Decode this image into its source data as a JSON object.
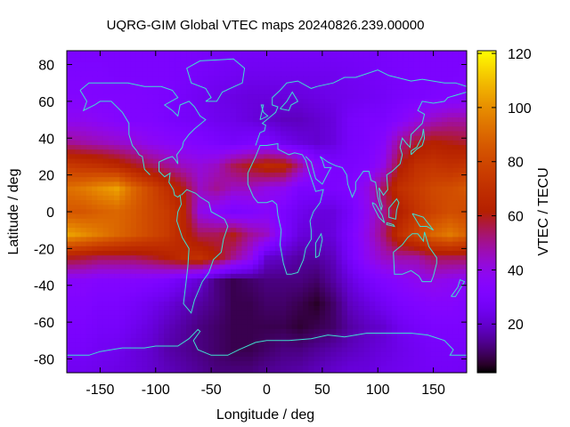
{
  "chart_data": {
    "type": "heatmap",
    "title": "UQRG-GIM Global VTEC maps 20240826.239.00000",
    "xlabel": "Longitude / deg",
    "ylabel": "Latitude / deg",
    "cblabel": "VTEC / TECU",
    "xlim": [
      -180,
      180
    ],
    "ylim": [
      -87.5,
      87.5
    ],
    "cblim": [
      2,
      121
    ],
    "xticks": [
      -150,
      -100,
      -50,
      0,
      50,
      100,
      150
    ],
    "yticks": [
      -80,
      -60,
      -40,
      -20,
      0,
      20,
      40,
      60,
      80
    ],
    "cbticks": [
      20,
      40,
      60,
      80,
      100,
      120
    ],
    "palette": "black-blue-purple-red-orange-yellow",
    "coastline_color": "#40e0d0",
    "lon": [
      -180,
      -165,
      -150,
      -135,
      -120,
      -105,
      -90,
      -75,
      -60,
      -45,
      -30,
      -15,
      0,
      15,
      30,
      45,
      60,
      75,
      90,
      105,
      120,
      135,
      150,
      165,
      180
    ],
    "lat": [
      87.5,
      75,
      62.5,
      50,
      37.5,
      25,
      12.5,
      0,
      -12.5,
      -25,
      -37.5,
      -50,
      -62.5,
      -75,
      -87.5
    ],
    "values": [
      [
        30,
        30,
        30,
        30,
        30,
        30,
        30,
        30,
        29,
        28,
        28,
        28,
        28,
        28,
        28,
        28,
        28,
        28,
        28,
        29,
        30,
        30,
        30,
        30,
        30
      ],
      [
        31,
        31,
        31,
        30,
        30,
        30,
        30,
        29,
        28,
        27,
        26,
        25,
        25,
        25,
        25,
        25,
        25,
        26,
        27,
        28,
        29,
        30,
        30,
        30,
        31
      ],
      [
        33,
        33,
        32,
        32,
        32,
        31,
        30,
        28,
        26,
        24,
        23,
        22,
        22,
        22,
        22,
        23,
        24,
        25,
        26,
        27,
        29,
        30,
        31,
        32,
        33
      ],
      [
        38,
        38,
        36,
        34,
        32,
        32,
        30,
        28,
        27,
        25,
        24,
        22,
        20,
        18,
        18,
        20,
        22,
        28,
        30,
        30,
        34,
        40,
        45,
        48,
        48
      ],
      [
        50,
        48,
        46,
        44,
        42,
        38,
        36,
        34,
        32,
        30,
        28,
        30,
        30,
        25,
        22,
        20,
        22,
        28,
        30,
        35,
        50,
        58,
        62,
        60,
        58
      ],
      [
        75,
        72,
        70,
        66,
        60,
        55,
        50,
        45,
        42,
        45,
        55,
        60,
        66,
        65,
        50,
        35,
        30,
        30,
        32,
        40,
        60,
        70,
        72,
        70,
        72
      ],
      [
        92,
        95,
        100,
        104,
        90,
        80,
        70,
        60,
        45,
        50,
        45,
        45,
        40,
        38,
        30,
        30,
        30,
        32,
        40,
        55,
        70,
        75,
        80,
        82,
        85
      ],
      [
        85,
        85,
        88,
        90,
        86,
        80,
        75,
        65,
        40,
        35,
        30,
        32,
        35,
        30,
        25,
        22,
        22,
        28,
        38,
        50,
        62,
        72,
        78,
        82,
        80
      ],
      [
        105,
        100,
        95,
        90,
        85,
        80,
        75,
        65,
        55,
        55,
        60,
        50,
        45,
        30,
        22,
        20,
        22,
        30,
        40,
        52,
        70,
        80,
        90,
        95,
        88
      ],
      [
        60,
        58,
        55,
        55,
        55,
        58,
        62,
        68,
        70,
        62,
        50,
        40,
        20,
        18,
        15,
        15,
        18,
        28,
        38,
        45,
        48,
        48,
        55,
        55,
        55
      ],
      [
        35,
        35,
        33,
        33,
        33,
        32,
        30,
        25,
        20,
        12,
        8,
        10,
        12,
        12,
        12,
        10,
        15,
        22,
        28,
        32,
        35,
        38,
        40,
        38,
        36
      ],
      [
        32,
        32,
        30,
        30,
        28,
        25,
        22,
        18,
        15,
        12,
        8,
        8,
        10,
        10,
        8,
        5,
        10,
        18,
        22,
        26,
        30,
        32,
        34,
        34,
        32
      ],
      [
        30,
        30,
        28,
        28,
        25,
        22,
        18,
        15,
        12,
        10,
        8,
        8,
        8,
        8,
        6,
        8,
        10,
        15,
        18,
        20,
        25,
        28,
        30,
        30,
        30
      ],
      [
        28,
        28,
        26,
        25,
        22,
        20,
        16,
        14,
        12,
        10,
        8,
        8,
        10,
        12,
        12,
        14,
        16,
        18,
        20,
        22,
        24,
        26,
        28,
        28,
        28
      ],
      [
        25,
        25,
        24,
        23,
        22,
        20,
        18,
        16,
        14,
        12,
        12,
        12,
        14,
        15,
        16,
        18,
        20,
        22,
        22,
        24,
        25,
        26,
        27,
        27,
        26
      ]
    ]
  }
}
